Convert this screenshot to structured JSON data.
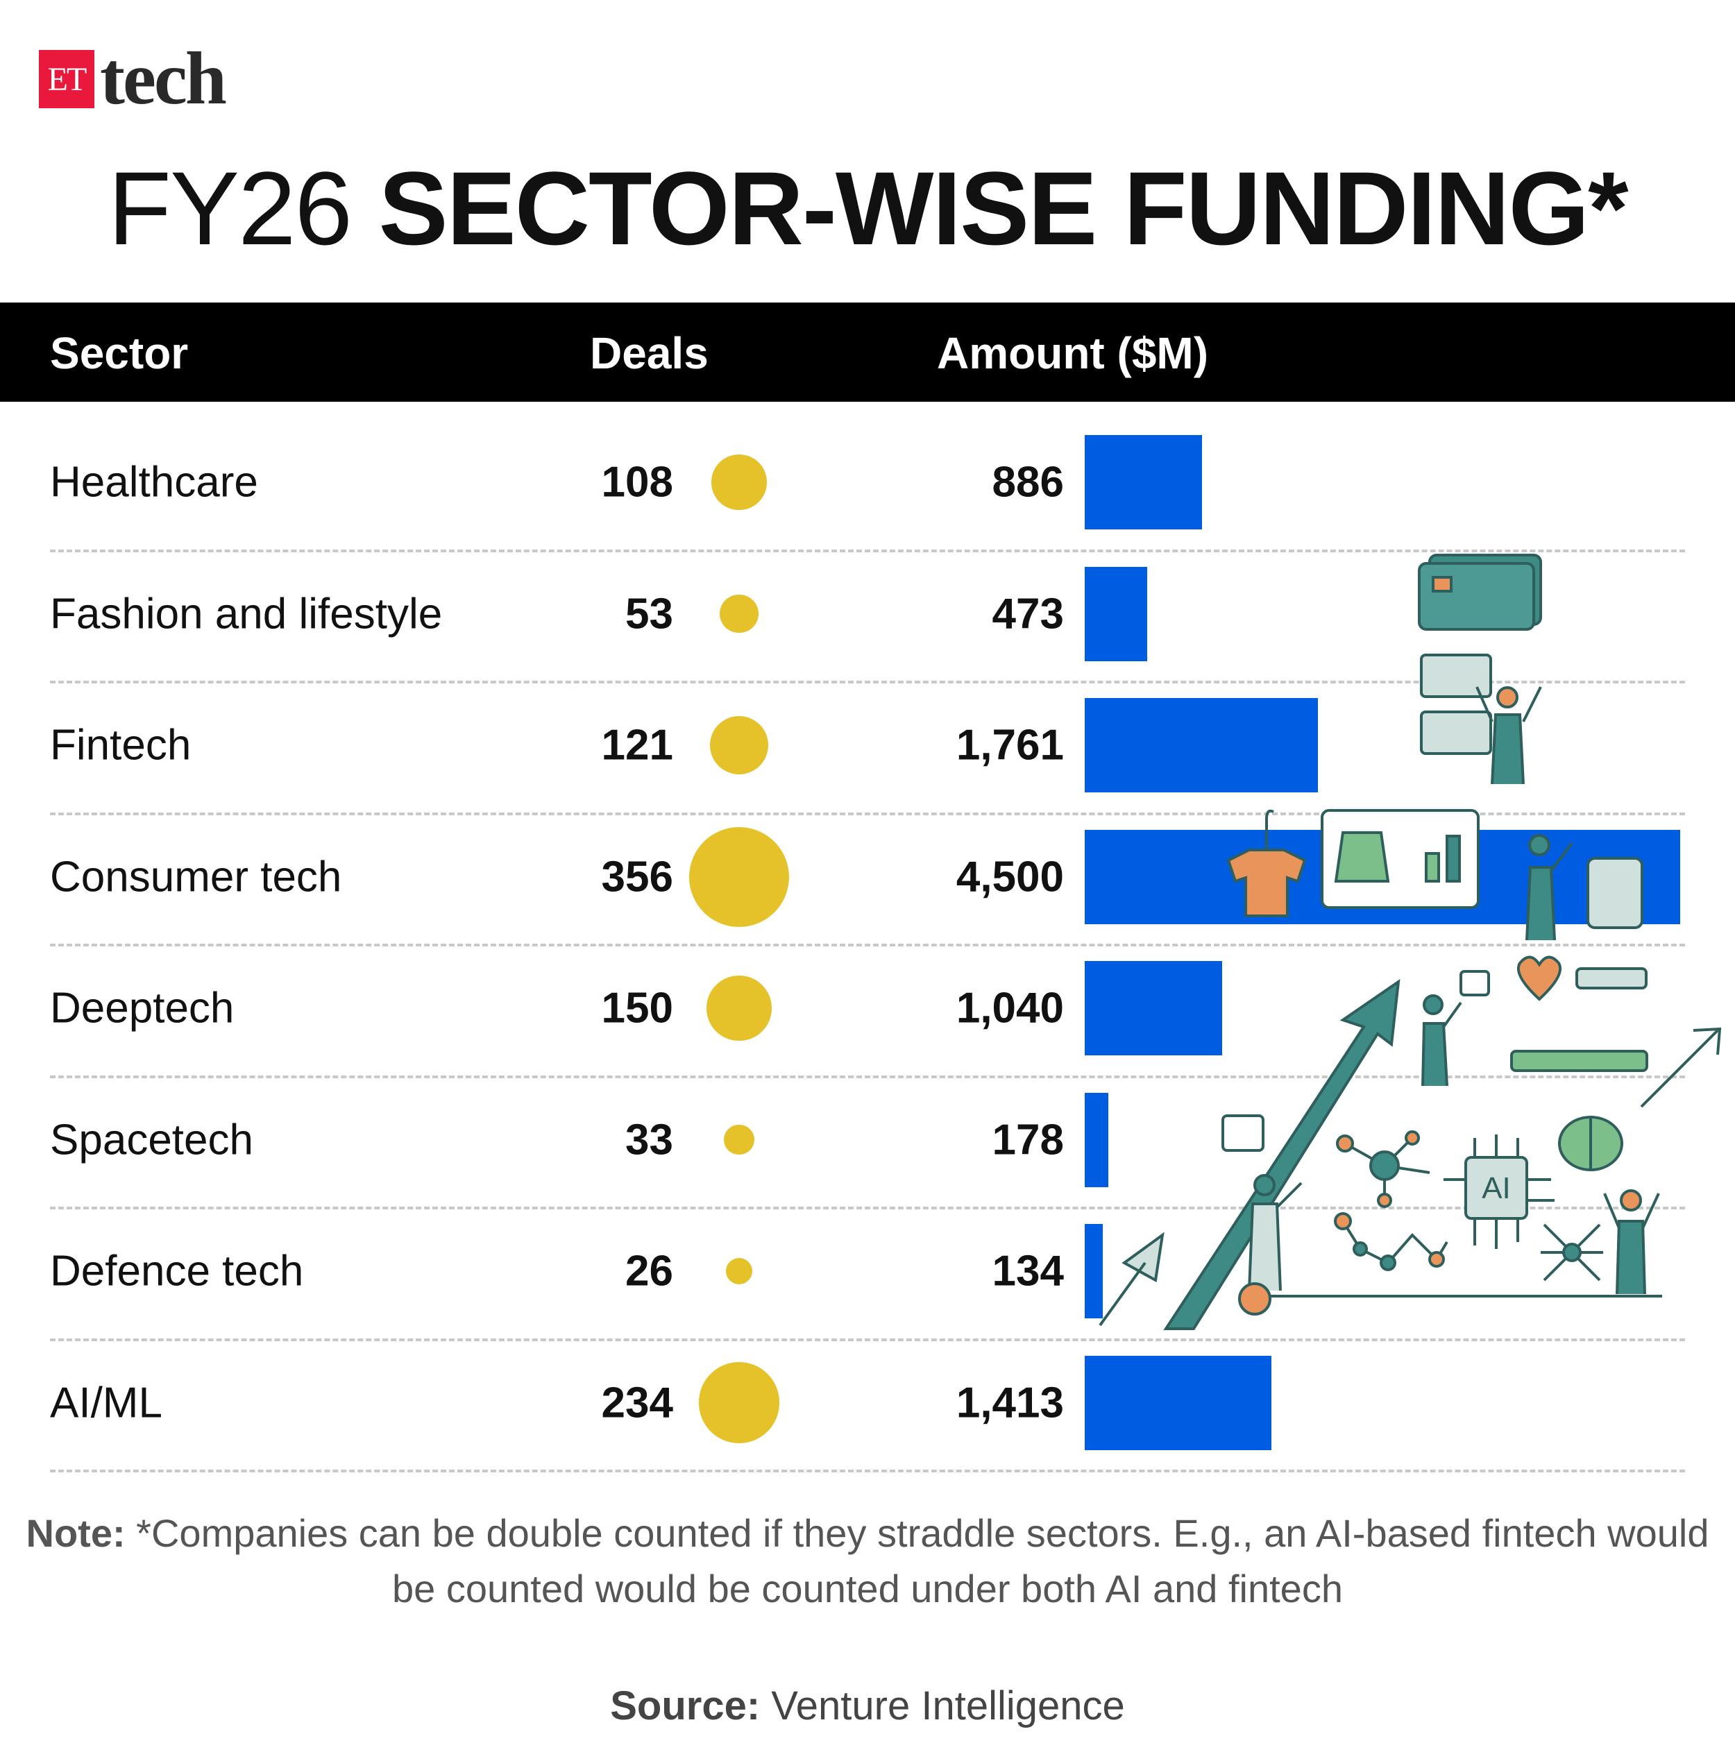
{
  "brand": {
    "logo_et": "ET",
    "logo_tech": "tech"
  },
  "title": {
    "light": "FY26 ",
    "bold": "SECTOR-WISE FUNDING*"
  },
  "header": {
    "sector": "Sector",
    "deals": "Deals",
    "amount": "Amount ($M)"
  },
  "colors": {
    "bar": "#005ce0",
    "bubble": "#e5c229",
    "header_bg": "#000000",
    "illustration": "#3e8a84",
    "accent": "#e8945a"
  },
  "chart_data": {
    "type": "table",
    "columns": [
      "Sector",
      "Deals",
      "Amount ($M)"
    ],
    "rows": [
      {
        "sector": "Healthcare",
        "deals": 108,
        "deals_label": "108",
        "amount": 886,
        "amount_label": "886"
      },
      {
        "sector": "Fashion and lifestyle",
        "deals": 53,
        "deals_label": "53",
        "amount": 473,
        "amount_label": "473"
      },
      {
        "sector": "Fintech",
        "deals": 121,
        "deals_label": "121",
        "amount": 1761,
        "amount_label": "1,761"
      },
      {
        "sector": "Consumer tech",
        "deals": 356,
        "deals_label": "356",
        "amount": 4500,
        "amount_label": "4,500"
      },
      {
        "sector": "Deeptech",
        "deals": 150,
        "deals_label": "150",
        "amount": 1040,
        "amount_label": "1,040"
      },
      {
        "sector": "Spacetech",
        "deals": 33,
        "deals_label": "33",
        "amount": 178,
        "amount_label": "178"
      },
      {
        "sector": "Defence tech",
        "deals": 26,
        "deals_label": "26",
        "amount": 134,
        "amount_label": "134"
      },
      {
        "sector": "AI/ML",
        "deals": 234,
        "deals_label": "234",
        "amount": 1413,
        "amount_label": "1,413"
      }
    ],
    "deals_encoding": "bubble area",
    "amount_encoding": "horizontal bar"
  },
  "illustration_labels": {
    "chip": "AI"
  },
  "note": {
    "label": "Note:",
    "text": " *Companies can be double counted if they straddle sectors. E.g., an AI-based fintech would be counted would be counted under both AI and fintech"
  },
  "source": {
    "label": "Source:",
    "text": " Venture Intelligence"
  }
}
